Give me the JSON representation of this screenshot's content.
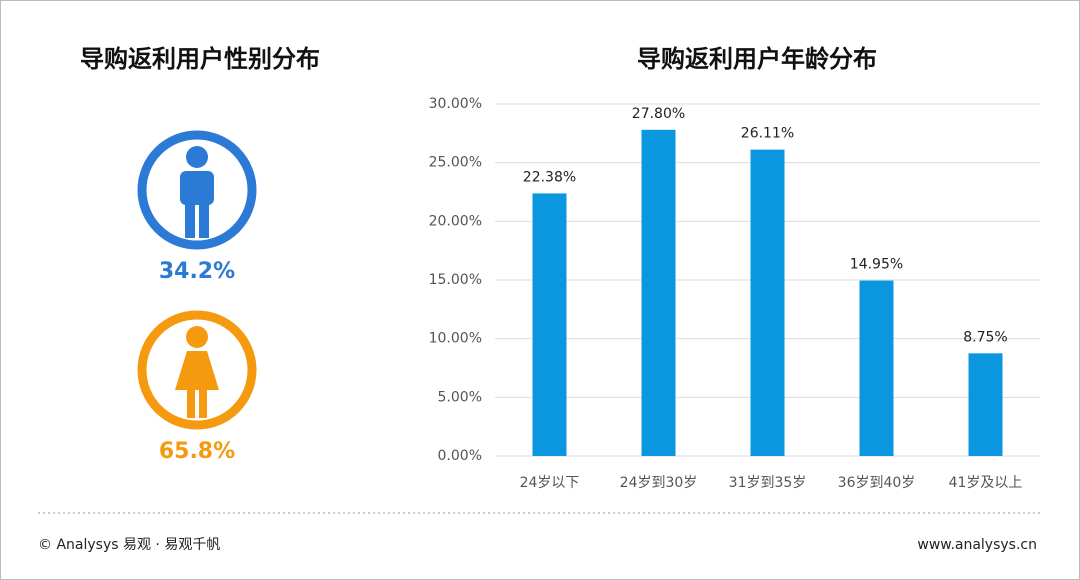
{
  "chart_data": [
    {
      "type": "gender",
      "title": "导购返利用户性别分布",
      "values": [
        34.2,
        65.8
      ],
      "value_labels": [
        "34.2%",
        "65.8%"
      ],
      "colors": [
        "#2a7ad6",
        "#f59a0f"
      ]
    },
    {
      "type": "bar",
      "title": "导购返利用户年龄分布",
      "categories": [
        "24岁以下",
        "24岁到30岁",
        "31岁到35岁",
        "36岁到40岁",
        "41岁及以上"
      ],
      "values": [
        22.38,
        27.8,
        26.11,
        14.95,
        8.75
      ],
      "value_labels": [
        "22.38%",
        "27.80%",
        "26.11%",
        "14.95%",
        "8.75%"
      ],
      "color": "#0b96e0",
      "ylim": [
        0,
        30
      ],
      "yticks": [
        {
          "value": 0,
          "label": "0.00%"
        },
        {
          "value": 5,
          "label": "5.00%"
        },
        {
          "value": 10,
          "label": "10.00%"
        },
        {
          "value": 15,
          "label": "15.00%"
        },
        {
          "value": 20,
          "label": "20.00%"
        },
        {
          "value": 25,
          "label": "25.00%"
        },
        {
          "value": 30,
          "label": "30.00%"
        }
      ],
      "grid": true
    }
  ],
  "footer": {
    "left": "© Analysys 易观 · 易观千帆",
    "right": "www.analysys.cn"
  }
}
